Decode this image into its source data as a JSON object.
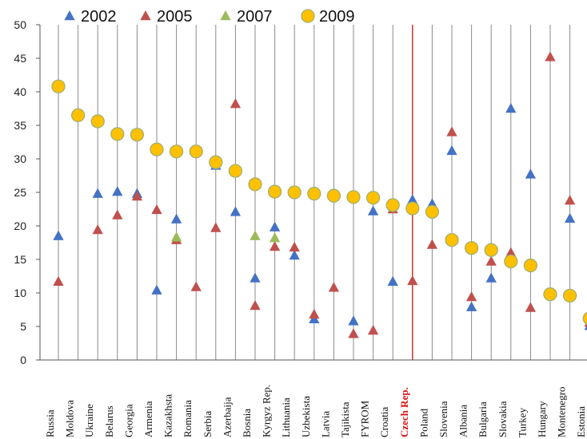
{
  "chart_data": {
    "type": "scatter",
    "ylim": [
      0,
      50
    ],
    "yticks": [
      0,
      5,
      10,
      15,
      20,
      25,
      30,
      35,
      40,
      45,
      50
    ],
    "grid": "vertical lines at categories",
    "legend_position": "top",
    "highlight_category": "Czech Rep.",
    "categories": [
      "Russia",
      "Moldova",
      "Ukraine",
      "Belarus",
      "Georgia",
      "Armenia",
      "Kazakhsta",
      "Romania",
      "Serbia",
      "Azerbaija",
      "Bosnia",
      "Kyrgyz Rep.",
      "Lithuania",
      "Uzbekista",
      "Latvia",
      "Tajikista",
      "FYROM",
      "Croatia",
      "Czech Rep.",
      "Poland",
      "Slovenia",
      "Albania",
      "Bulgaria",
      "Slovakia",
      "Turkey",
      "Hungary",
      "Montenegro",
      "Estonia"
    ],
    "series": [
      {
        "name": "2002",
        "marker": "triangle",
        "color": "#4472c4",
        "values": [
          18.5,
          null,
          24.8,
          25.1,
          24.8,
          10.4,
          21.0,
          null,
          29.0,
          22.1,
          12.2,
          19.8,
          15.6,
          6.1,
          null,
          5.8,
          22.2,
          11.7,
          23.9,
          23.3,
          31.2,
          7.9,
          12.2,
          37.5,
          27.7,
          null,
          21.1,
          5.1
        ]
      },
      {
        "name": "2005",
        "marker": "triangle",
        "color": "#c0504d",
        "values": [
          11.7,
          null,
          19.4,
          21.6,
          24.4,
          22.4,
          17.9,
          10.9,
          19.7,
          38.2,
          8.1,
          16.9,
          16.8,
          6.8,
          10.8,
          3.9,
          4.4,
          22.5,
          11.8,
          17.2,
          34.0,
          9.4,
          14.7,
          16.0,
          7.8,
          45.2,
          23.8,
          5.6
        ]
      },
      {
        "name": "2007",
        "marker": "triangle",
        "color": "#9bbb59",
        "values": [
          null,
          null,
          null,
          null,
          null,
          null,
          18.3,
          null,
          null,
          null,
          18.5,
          18.2,
          null,
          null,
          null,
          null,
          null,
          null,
          null,
          null,
          null,
          null,
          null,
          null,
          null,
          null,
          null,
          null
        ]
      },
      {
        "name": "2009",
        "marker": "circle",
        "color": "#ffc000",
        "values": [
          40.8,
          36.5,
          35.6,
          33.7,
          33.6,
          31.4,
          31.1,
          31.1,
          29.5,
          28.2,
          26.2,
          25.1,
          25.0,
          24.8,
          24.5,
          24.3,
          24.2,
          23.1,
          22.6,
          22.1,
          17.9,
          16.7,
          16.4,
          14.7,
          14.1,
          9.8,
          9.6,
          6.2
        ]
      }
    ]
  }
}
